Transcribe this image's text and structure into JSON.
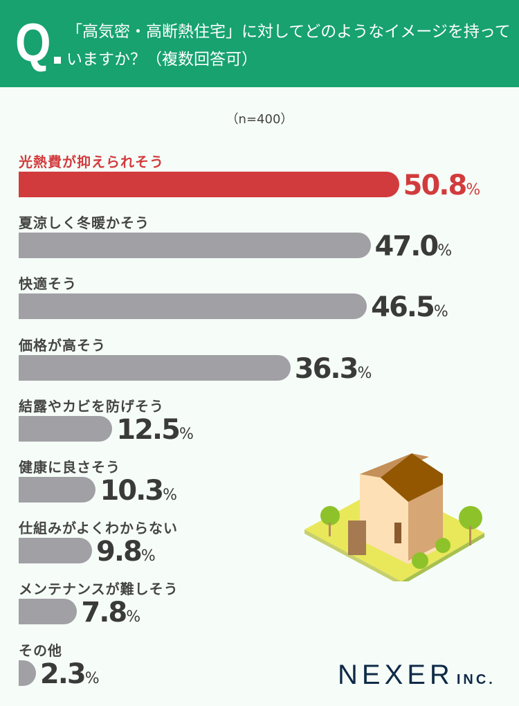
{
  "header": {
    "q_mark": "Q",
    "question": "「高気密・高断熱住宅」に対してどのようなイメージを持っていますか？（複数回答可）"
  },
  "chart_data": {
    "type": "bar",
    "orientation": "horizontal",
    "title": "「高気密・高断熱住宅」に対してどのようなイメージを持っていますか？（複数回答可）",
    "subtitle": "（n=400）",
    "categories": [
      "光熱費が抑えられそう",
      "夏涼しく冬暖かそう",
      "快適そう",
      "価格が高そう",
      "結露やカビを防げそう",
      "健康に良さそう",
      "仕組みがよくわからない",
      "メンテナンスが難しそう",
      "その他"
    ],
    "values": [
      50.8,
      47.0,
      46.5,
      36.3,
      12.5,
      10.3,
      9.8,
      7.8,
      2.3
    ],
    "value_labels": [
      "50.8",
      "47.0",
      "46.5",
      "36.3",
      "12.5",
      "10.3",
      "9.8",
      "7.8",
      "2.3"
    ],
    "unit": "%",
    "highlight_index": 0,
    "colors": {
      "highlight": "#d23b3d",
      "default": "#a0a0a5"
    }
  },
  "footer": {
    "logo_main": "NEXER",
    "logo_sub": "INC."
  }
}
